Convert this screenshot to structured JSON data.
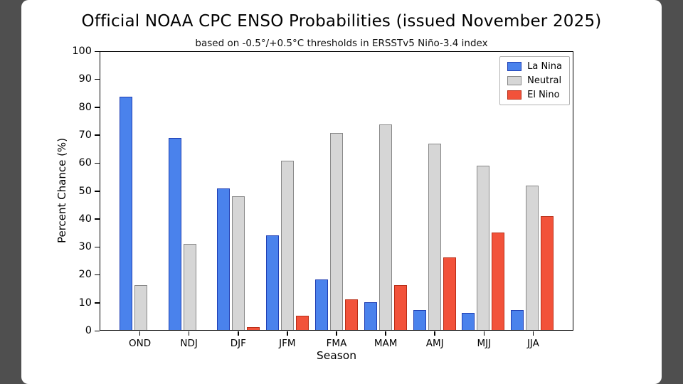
{
  "frame": {
    "letterbox_color": "#4f4f4f",
    "canvas_color": "#ffffff"
  },
  "chart_data": {
    "type": "bar",
    "title": "Official NOAA CPC ENSO Probabilities (issued November 2025)",
    "subtitle": "based on -0.5°/+0.5°C thresholds in ERSSTv5 Niño-3.4 index",
    "xlabel": "Season",
    "ylabel": "Percent Chance (%)",
    "ylim": [
      0,
      100
    ],
    "yticks": [
      0,
      10,
      20,
      30,
      40,
      50,
      60,
      70,
      80,
      90,
      100
    ],
    "categories": [
      "OND",
      "NDJ",
      "DJF",
      "JFM",
      "FMA",
      "MAM",
      "AMJ",
      "MJJ",
      "JJA"
    ],
    "series": [
      {
        "name": "La Nina",
        "color": "#4a82ec",
        "edge": "#1f3eb3",
        "values": [
          84,
          69,
          51,
          34,
          18,
          10,
          7,
          6,
          7
        ]
      },
      {
        "name": "Neutral",
        "color": "#d6d6d6",
        "edge": "#888888",
        "values": [
          16,
          31,
          48,
          61,
          71,
          74,
          67,
          59,
          52
        ]
      },
      {
        "name": "El Nino",
        "color": "#f2523a",
        "edge": "#b92d16",
        "values": [
          0,
          0,
          1,
          5,
          11,
          16,
          26,
          35,
          41
        ]
      }
    ],
    "legend_position": "top-right",
    "grid": false
  }
}
